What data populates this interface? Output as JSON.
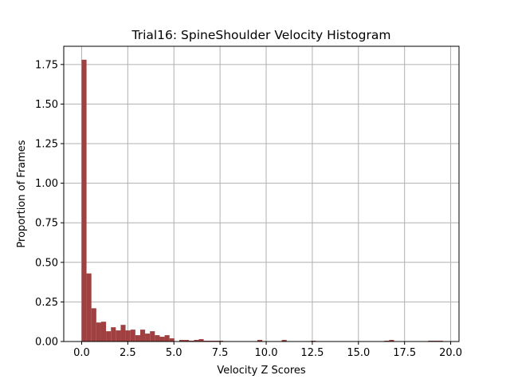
{
  "chart_data": {
    "type": "bar",
    "title": "Trial16: SpineShoulder Velocity Histogram",
    "xlabel": "Velocity Z Scores",
    "ylabel": "Proportion of Frames",
    "xlim": [
      -0.97,
      20.45
    ],
    "ylim": [
      0,
      1.865
    ],
    "xticks": [
      "0.0",
      "2.5",
      "5.0",
      "7.5",
      "10.0",
      "12.5",
      "15.0",
      "17.5",
      "20.0"
    ],
    "yticks": [
      "0.00",
      "0.25",
      "0.50",
      "0.75",
      "1.00",
      "1.25",
      "1.50",
      "1.75"
    ],
    "grid": true,
    "color": "#a04040",
    "bin_start": 0.0,
    "bin_width": 0.2645,
    "values": [
      1.78,
      0.43,
      0.21,
      0.12,
      0.125,
      0.065,
      0.09,
      0.07,
      0.105,
      0.07,
      0.075,
      0.04,
      0.075,
      0.05,
      0.065,
      0.04,
      0.03,
      0.04,
      0.02,
      0.0,
      0.01,
      0.01,
      0.005,
      0.01,
      0.015,
      0.005,
      0.005,
      0.005,
      0.005,
      0.0,
      0.0,
      0.0,
      0.0,
      0.0,
      0.0,
      0.0,
      0.01,
      0.0,
      0.0,
      0.0,
      0.0,
      0.01,
      0.0,
      0.0,
      0.0,
      0.0,
      0.0,
      0.005,
      0.0,
      0.0,
      0.0,
      0.0,
      0.0,
      0.0,
      0.0,
      0.0,
      0.0,
      0.0,
      0.0,
      0.0,
      0.0,
      0.0,
      0.005,
      0.01,
      0.0,
      0.0,
      0.0,
      0.0,
      0.0,
      0.0,
      0.0,
      0.005,
      0.005,
      0.005
    ]
  }
}
